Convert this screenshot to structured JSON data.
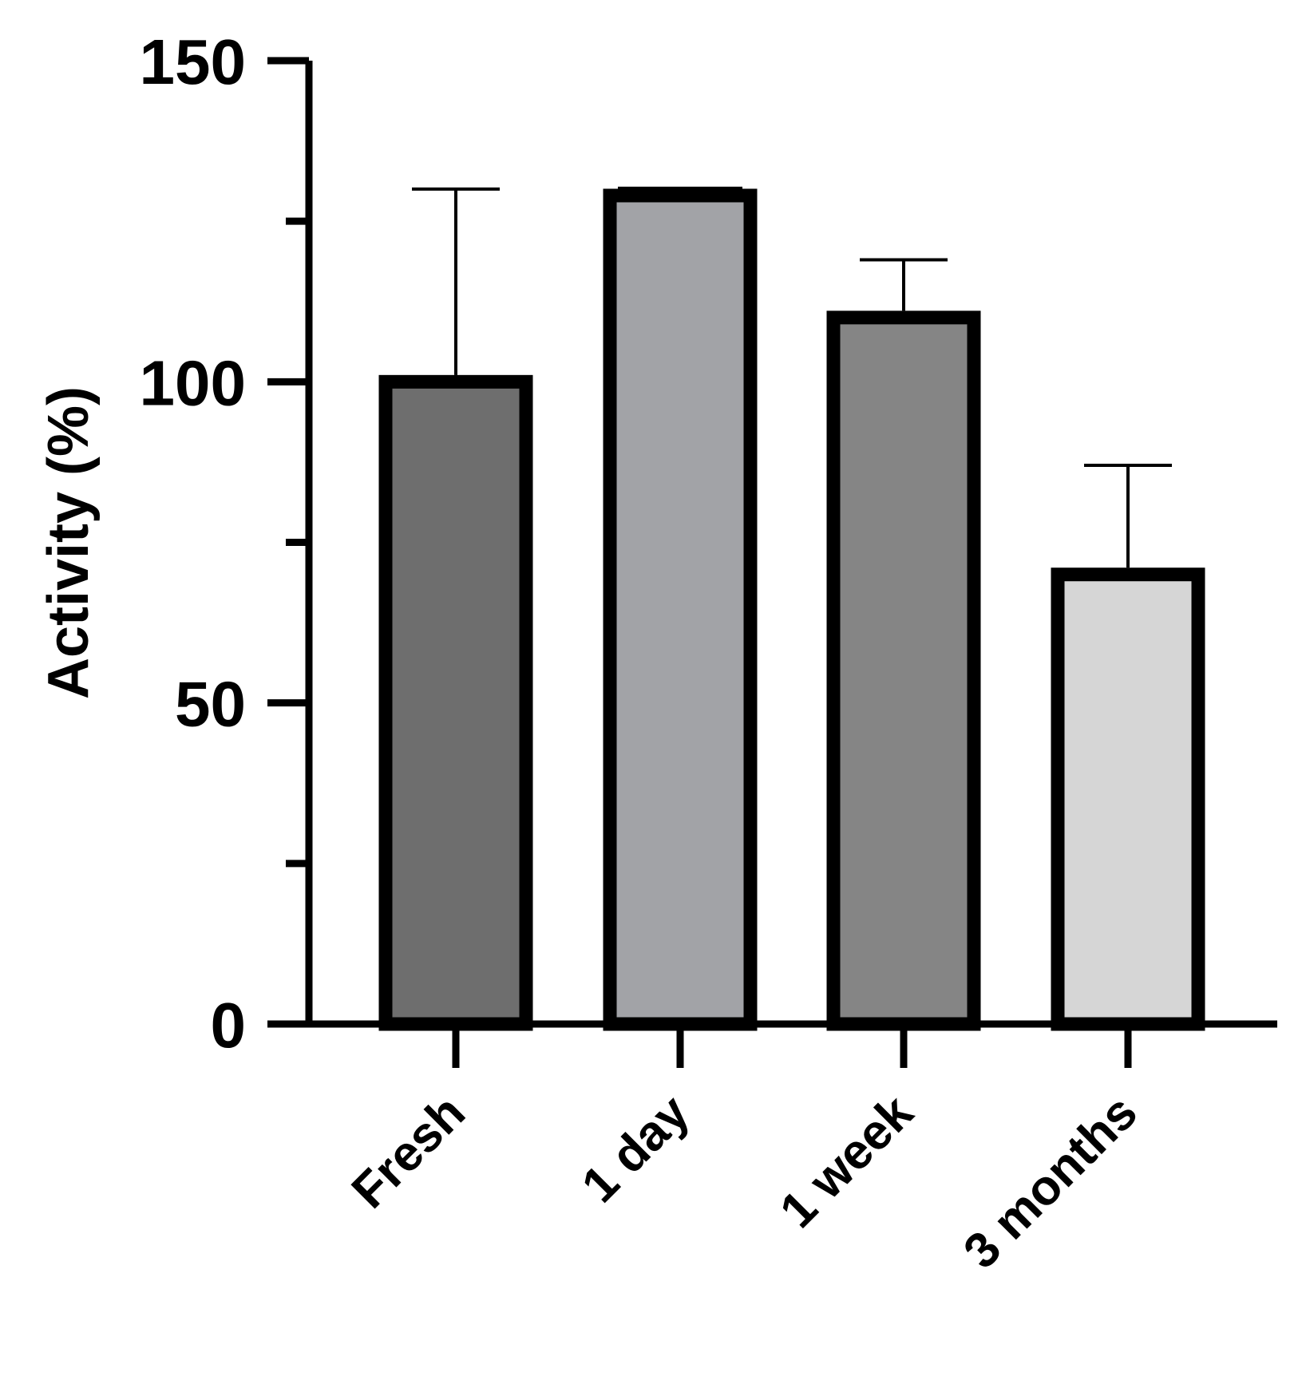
{
  "chart_data": {
    "type": "bar",
    "title": "",
    "xlabel": "",
    "ylabel": "Activity (%)",
    "ylim": [
      0,
      150
    ],
    "grid": false,
    "y_major_ticks": [
      0,
      50,
      100,
      150
    ],
    "y_minor_ticks": [
      25,
      75,
      125
    ],
    "y_tick_labels": [
      "0",
      "50",
      "100",
      "150"
    ],
    "categories": [
      "Fresh",
      "1 day",
      "1 week",
      "3 months"
    ],
    "values": [
      100,
      129,
      110,
      70
    ],
    "error_upper": [
      30,
      1,
      9,
      17
    ],
    "colors": [
      "#6e6e6e",
      "#a2a3a7",
      "#858585",
      "#d6d6d6"
    ]
  }
}
